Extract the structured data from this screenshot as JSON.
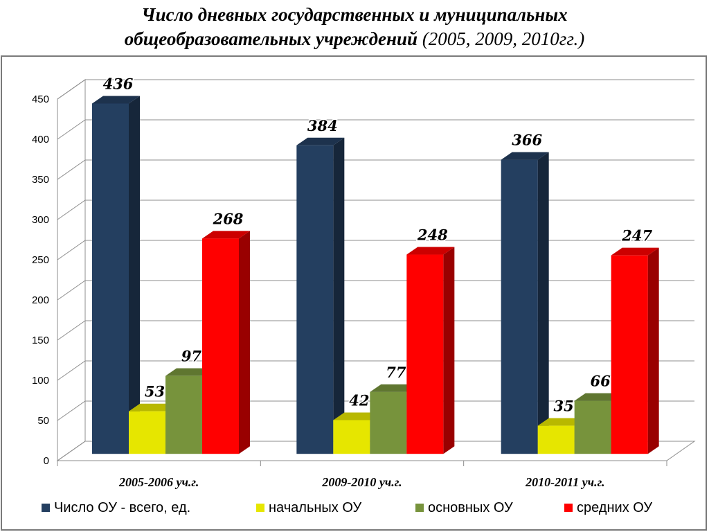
{
  "title": {
    "line1": "Число дневных государственных и муниципальных",
    "line2_main": "общеобразовательных учреждений",
    "line2_years": "(2005, 2009, 2010гг.)"
  },
  "chart_data": {
    "type": "bar",
    "categories": [
      "2005-2006 уч.г.",
      "2009-2010 уч.г.",
      "2010-2011 уч.г."
    ],
    "series": [
      {
        "name": "Число ОУ - всего, ед.",
        "values": [
          436,
          384,
          366
        ],
        "color": "#243f60"
      },
      {
        "name": "начальных ОУ",
        "values": [
          53,
          42,
          35
        ],
        "color": "#e6e600"
      },
      {
        "name": "основных ОУ",
        "values": [
          97,
          77,
          66
        ],
        "color": "#77933c"
      },
      {
        "name": "средних ОУ",
        "values": [
          268,
          248,
          247
        ],
        "color": "#ff0000"
      }
    ],
    "ylim": [
      0,
      450
    ],
    "yticks": [
      0,
      50,
      100,
      150,
      200,
      250,
      300,
      350,
      400,
      450
    ],
    "grid": true,
    "legend": "bottom",
    "data_labels": true
  }
}
